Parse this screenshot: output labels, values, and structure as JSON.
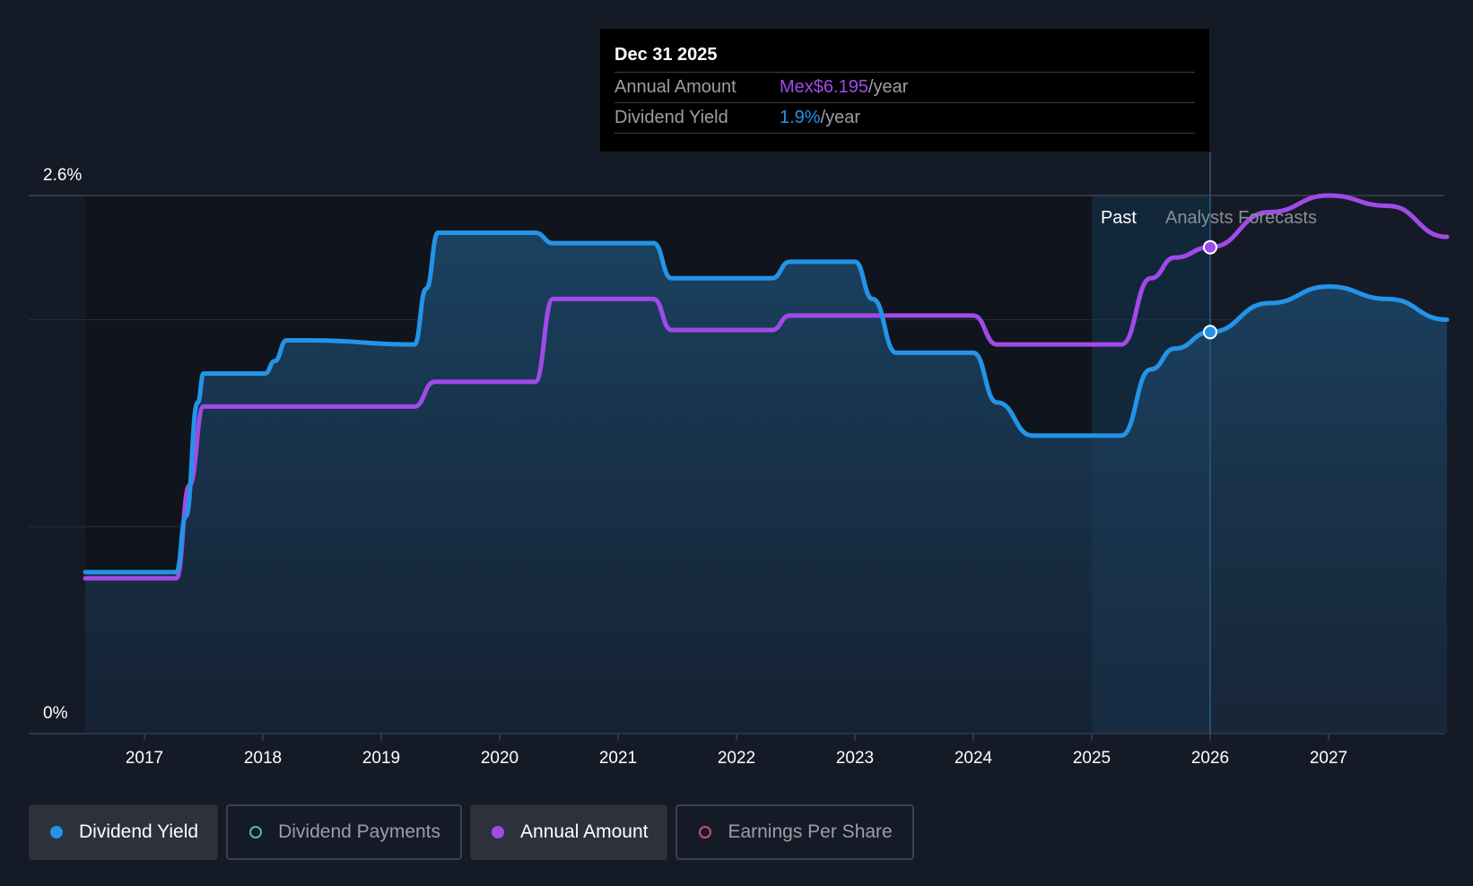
{
  "tooltip": {
    "date": "Dec 31 2025",
    "rows": [
      {
        "label": "Annual Amount",
        "value": "Mex$6.195",
        "unit": "/year"
      },
      {
        "label": "Dividend Yield",
        "value": "1.9%",
        "unit": "/year"
      }
    ]
  },
  "regions": {
    "past": "Past",
    "forecast": "Analysts Forecasts"
  },
  "legend": [
    {
      "label": "Dividend Yield",
      "color": "#2394e8",
      "active": true
    },
    {
      "label": "Dividend Payments",
      "color": "#3fc1b0",
      "active": false
    },
    {
      "label": "Annual Amount",
      "color": "#a04ae8",
      "active": true
    },
    {
      "label": "Earnings Per Share",
      "color": "#d14a7a",
      "active": false
    }
  ],
  "colors": {
    "yield": "#2394e8",
    "amount": "#a04ae8",
    "background": "#151b26"
  },
  "chart_data": {
    "type": "line",
    "y_tick_labels": [
      "2.6%",
      "0%"
    ],
    "y_range": [
      0,
      2.6
    ],
    "x_range": [
      2016.5,
      2028.0
    ],
    "x_ticks": [
      "2017",
      "2018",
      "2019",
      "2020",
      "2021",
      "2022",
      "2023",
      "2024",
      "2025",
      "2026",
      "2027"
    ],
    "past_end": 2025.5,
    "forecast_start": 2026.0,
    "series": [
      {
        "name": "Dividend Yield",
        "points": [
          [
            2016.5,
            0.78
          ],
          [
            2017.27,
            0.78
          ],
          [
            2017.35,
            1.05
          ],
          [
            2017.45,
            1.6
          ],
          [
            2017.5,
            1.74
          ],
          [
            2018.02,
            1.74
          ],
          [
            2018.1,
            1.8
          ],
          [
            2018.2,
            1.9
          ],
          [
            2018.4,
            1.9
          ],
          [
            2019.28,
            1.88
          ],
          [
            2019.38,
            2.15
          ],
          [
            2019.48,
            2.42
          ],
          [
            2020.3,
            2.42
          ],
          [
            2020.45,
            2.37
          ],
          [
            2021.3,
            2.37
          ],
          [
            2021.45,
            2.2
          ],
          [
            2022.3,
            2.2
          ],
          [
            2022.45,
            2.28
          ],
          [
            2023.0,
            2.28
          ],
          [
            2023.15,
            2.1
          ],
          [
            2023.35,
            1.84
          ],
          [
            2024.0,
            1.84
          ],
          [
            2024.2,
            1.6
          ],
          [
            2024.5,
            1.44
          ],
          [
            2025.25,
            1.44
          ],
          [
            2025.5,
            1.76
          ],
          [
            2025.7,
            1.86
          ],
          [
            2026.0,
            1.94
          ],
          [
            2026.5,
            2.08
          ],
          [
            2027.0,
            2.16
          ],
          [
            2027.5,
            2.1
          ],
          [
            2028.0,
            2.0
          ]
        ]
      },
      {
        "name": "Annual Amount",
        "points": [
          [
            2016.5,
            0.75
          ],
          [
            2017.27,
            0.75
          ],
          [
            2017.38,
            1.2
          ],
          [
            2017.5,
            1.58
          ],
          [
            2019.28,
            1.58
          ],
          [
            2019.45,
            1.7
          ],
          [
            2020.3,
            1.7
          ],
          [
            2020.45,
            2.1
          ],
          [
            2021.3,
            2.1
          ],
          [
            2021.45,
            1.95
          ],
          [
            2022.3,
            1.95
          ],
          [
            2022.45,
            2.02
          ],
          [
            2024.0,
            2.02
          ],
          [
            2024.2,
            1.88
          ],
          [
            2025.25,
            1.88
          ],
          [
            2025.5,
            2.2
          ],
          [
            2025.7,
            2.3
          ],
          [
            2026.0,
            2.35
          ],
          [
            2026.5,
            2.52
          ],
          [
            2027.0,
            2.6
          ],
          [
            2027.5,
            2.55
          ],
          [
            2028.0,
            2.4
          ]
        ]
      }
    ],
    "highlight_x": 2026.0
  }
}
